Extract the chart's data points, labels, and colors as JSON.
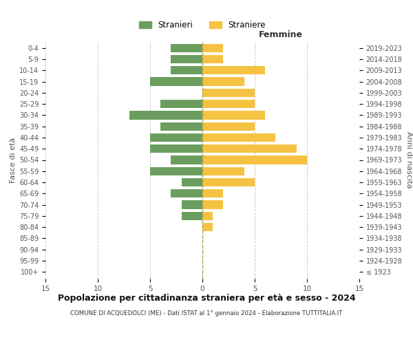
{
  "age_groups": [
    "100+",
    "95-99",
    "90-94",
    "85-89",
    "80-84",
    "75-79",
    "70-74",
    "65-69",
    "60-64",
    "55-59",
    "50-54",
    "45-49",
    "40-44",
    "35-39",
    "30-34",
    "25-29",
    "20-24",
    "15-19",
    "10-14",
    "5-9",
    "0-4"
  ],
  "birth_years": [
    "≤ 1923",
    "1924-1928",
    "1929-1933",
    "1934-1938",
    "1939-1943",
    "1944-1948",
    "1949-1953",
    "1954-1958",
    "1959-1963",
    "1964-1968",
    "1969-1973",
    "1974-1978",
    "1979-1983",
    "1984-1988",
    "1989-1993",
    "1994-1998",
    "1999-2003",
    "2004-2008",
    "2009-2013",
    "2014-2018",
    "2019-2023"
  ],
  "males": [
    0,
    0,
    0,
    0,
    0,
    2,
    2,
    3,
    2,
    5,
    3,
    5,
    5,
    4,
    7,
    4,
    0,
    5,
    3,
    3,
    3
  ],
  "females": [
    0,
    0,
    0,
    0,
    1,
    1,
    2,
    2,
    5,
    4,
    10,
    9,
    7,
    5,
    6,
    5,
    5,
    4,
    6,
    2,
    2
  ],
  "male_color": "#6b9e5e",
  "female_color": "#f5c242",
  "title": "Popolazione per cittadinanza straniera per età e sesso - 2024",
  "subtitle": "COMUNE DI ACQUEDOLCI (ME) - Dati ISTAT al 1° gennaio 2024 - Elaborazione TUTTITALIA.IT",
  "legend_male": "Stranieri",
  "legend_female": "Straniere",
  "xlabel_right": "Femmine",
  "ylabel_left": "Fasce di età",
  "ylabel_right": "Anni di nascita",
  "xlim": 15,
  "background_color": "#ffffff",
  "grid_color": "#cccccc"
}
